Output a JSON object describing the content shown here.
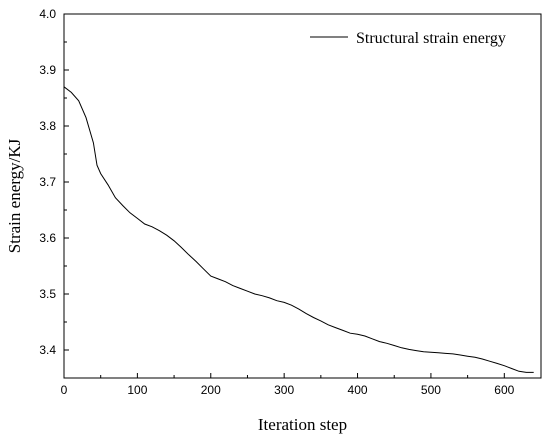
{
  "chart_data": {
    "type": "line",
    "title": "",
    "xlabel": "Iteration step",
    "ylabel": "Strain energy/KJ",
    "xlim": [
      0,
      650
    ],
    "ylim": [
      3.35,
      4.0
    ],
    "x_ticks": [
      0,
      100,
      200,
      300,
      400,
      500,
      600
    ],
    "y_ticks": [
      "3.4",
      "3.5",
      "3.6",
      "3.7",
      "3.8",
      "3.9",
      "4.0"
    ],
    "grid": false,
    "legend_position": "top-right",
    "series": [
      {
        "name": "Structural strain energy",
        "color": "#000000",
        "x": [
          0,
          10,
          20,
          30,
          40,
          45,
          50,
          60,
          70,
          80,
          90,
          100,
          110,
          120,
          130,
          140,
          150,
          160,
          170,
          180,
          190,
          200,
          210,
          220,
          230,
          240,
          250,
          260,
          270,
          280,
          290,
          300,
          310,
          320,
          330,
          340,
          350,
          360,
          370,
          380,
          390,
          400,
          410,
          420,
          430,
          440,
          450,
          460,
          470,
          480,
          490,
          500,
          510,
          520,
          530,
          540,
          550,
          560,
          570,
          580,
          590,
          600,
          610,
          620,
          630,
          640
        ],
        "y": [
          3.87,
          3.86,
          3.845,
          3.815,
          3.77,
          3.73,
          3.715,
          3.695,
          3.672,
          3.658,
          3.645,
          3.635,
          3.625,
          3.62,
          3.613,
          3.605,
          3.595,
          3.583,
          3.57,
          3.558,
          3.545,
          3.532,
          3.527,
          3.522,
          3.515,
          3.51,
          3.505,
          3.5,
          3.497,
          3.493,
          3.488,
          3.485,
          3.48,
          3.473,
          3.465,
          3.458,
          3.452,
          3.445,
          3.44,
          3.435,
          3.43,
          3.428,
          3.425,
          3.42,
          3.415,
          3.412,
          3.408,
          3.404,
          3.401,
          3.399,
          3.397,
          3.396,
          3.395,
          3.394,
          3.393,
          3.391,
          3.389,
          3.387,
          3.384,
          3.38,
          3.376,
          3.372,
          3.367,
          3.362,
          3.36,
          3.36
        ]
      }
    ]
  }
}
